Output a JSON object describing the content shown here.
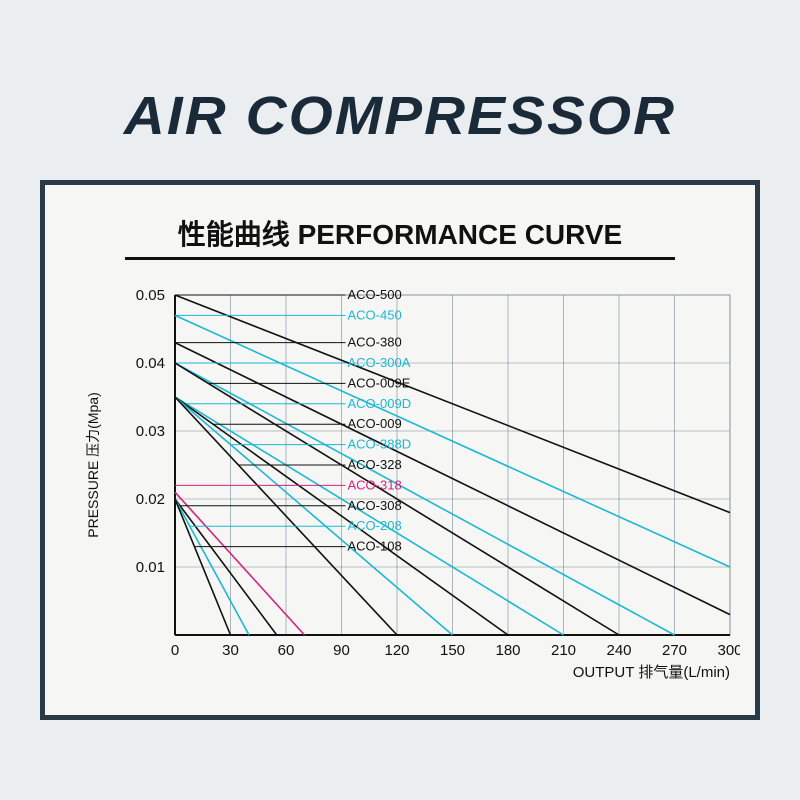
{
  "main_title": "AIR COMPRESSOR",
  "chart": {
    "title": "性能曲线 PERFORMANCE CURVE",
    "y_axis_title": "PRESSURE 压力(Mpa)",
    "x_axis_title": "OUTPUT 排气量(L/min)",
    "background_color": "#f6f6f4",
    "frame_color": "#2a3a46",
    "grid_color": "#7a8a96",
    "x": {
      "min": 0,
      "max": 300,
      "ticks": [
        0,
        30,
        60,
        90,
        120,
        150,
        180,
        210,
        240,
        270,
        300
      ]
    },
    "y": {
      "min": 0,
      "max": 0.05,
      "ticks": [
        0.01,
        0.02,
        0.03,
        0.04,
        0.05
      ]
    },
    "colors": {
      "black": "#111111",
      "cyan": "#1bb8d4",
      "magenta": "#d6227f"
    },
    "series": [
      {
        "name": "ACO-500",
        "color": "black",
        "label_y": 0.05,
        "p1": [
          0,
          0.05
        ],
        "p2": [
          300,
          0.018
        ]
      },
      {
        "name": "ACO-450",
        "color": "cyan",
        "label_y": 0.047,
        "p1": [
          0,
          0.047
        ],
        "p2": [
          300,
          0.01
        ]
      },
      {
        "name": "ACO-380",
        "color": "black",
        "label_y": 0.043,
        "p1": [
          0,
          0.043
        ],
        "p2": [
          300,
          0.003
        ]
      },
      {
        "name": "ACO-300A",
        "color": "cyan",
        "label_y": 0.04,
        "p1": [
          0,
          0.04
        ],
        "p2": [
          270,
          0.0
        ]
      },
      {
        "name": "ACO-009E",
        "color": "black",
        "label_y": 0.037,
        "p1": [
          0,
          0.04
        ],
        "p2": [
          240,
          0.0
        ]
      },
      {
        "name": "ACO-009D",
        "color": "cyan",
        "label_y": 0.034,
        "p1": [
          0,
          0.035
        ],
        "p2": [
          210,
          0.0
        ]
      },
      {
        "name": "ACO-009",
        "color": "black",
        "label_y": 0.031,
        "p1": [
          0,
          0.035
        ],
        "p2": [
          180,
          0.0
        ]
      },
      {
        "name": "ACO-388D",
        "color": "cyan",
        "label_y": 0.028,
        "p1": [
          0,
          0.035
        ],
        "p2": [
          150,
          0.0
        ]
      },
      {
        "name": "ACO-328",
        "color": "black",
        "label_y": 0.025,
        "p1": [
          0,
          0.035
        ],
        "p2": [
          120,
          0.0
        ]
      },
      {
        "name": "ACO-318",
        "color": "magenta",
        "label_y": 0.022,
        "p1": [
          0,
          0.021
        ],
        "p2": [
          70,
          0.0
        ]
      },
      {
        "name": "ACO-308",
        "color": "black",
        "label_y": 0.019,
        "p1": [
          0,
          0.02
        ],
        "p2": [
          55,
          0.0
        ]
      },
      {
        "name": "ACO-208",
        "color": "cyan",
        "label_y": 0.016,
        "p1": [
          0,
          0.02
        ],
        "p2": [
          40,
          0.0
        ]
      },
      {
        "name": "ACO-108",
        "color": "black",
        "label_y": 0.013,
        "p1": [
          0,
          0.02
        ],
        "p2": [
          30,
          0.0
        ]
      }
    ]
  }
}
